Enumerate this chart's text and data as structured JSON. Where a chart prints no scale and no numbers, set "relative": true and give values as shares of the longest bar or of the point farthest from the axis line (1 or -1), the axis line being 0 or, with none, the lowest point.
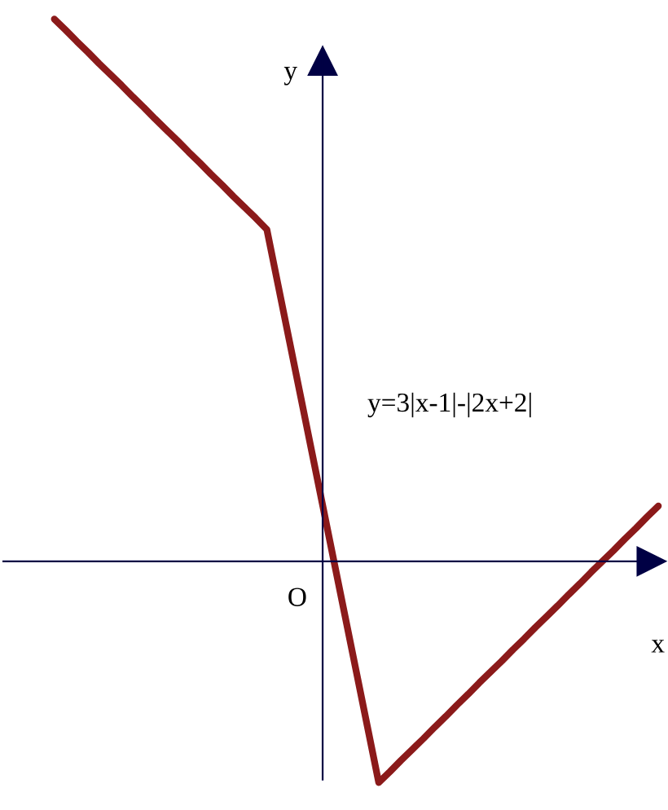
{
  "chart_data": {
    "type": "line",
    "relative": true,
    "xlabel": "x",
    "ylabel": "y",
    "categories": [
      null,
      null,
      null,
      null,
      null,
      null,
      null,
      null,
      null,
      null,
      null,
      null,
      null,
      null,
      null,
      null,
      null,
      null,
      null,
      null,
      null,
      null,
      null,
      null,
      null,
      null,
      null,
      null,
      null,
      null,
      null,
      null,
      null,
      null,
      null,
      null,
      null,
      null,
      null,
      null,
      null,
      null,
      null,
      null,
      null,
      null,
      null,
      null,
      null,
      null,
      null,
      null,
      null,
      null,
      null
    ],
    "series": [
      {
        "color": "#8b1a1a",
        "values": [
          1,
          0.98,
          0.959,
          0.939,
          0.918,
          0.898,
          0.878,
          0.857,
          0.837,
          0.816,
          0.796,
          0.776,
          0.755,
          0.735,
          0.714,
          0.694,
          0.673,
          0.653,
          0.633,
          0.612,
          0.51,
          0.408,
          0.306,
          0.204,
          0.102,
          0,
          -0.102,
          -0.204,
          -0.306,
          -0.408,
          -0.388,
          -0.367,
          -0.347,
          -0.327,
          -0.306,
          -0.286,
          -0.265,
          -0.245,
          -0.224,
          -0.204,
          -0.184,
          -0.163,
          -0.143,
          -0.122,
          -0.102,
          -0.082,
          -0.061,
          -0.041,
          -0.02,
          0,
          0.02,
          0.041,
          0.061,
          0.082,
          0.102
        ]
      }
    ],
    "annotations": [
      "y=3|x-1|-|2x+2|",
      "O"
    ],
    "marker": "none",
    "line_style": "solid"
  }
}
